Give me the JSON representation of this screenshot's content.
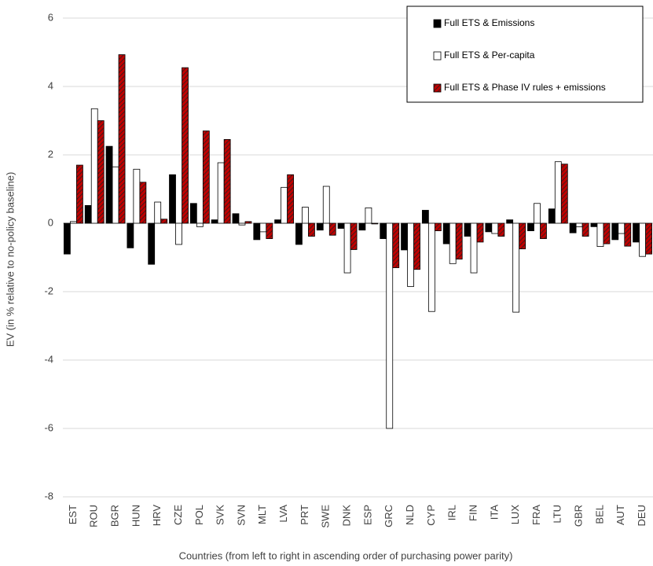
{
  "chart_data": {
    "type": "bar",
    "y_label": "EV (in % relative to no-policy baseline)",
    "x_label": "Countries (from left to right in ascending order of purchasing power parity)",
    "categories": [
      "EST",
      "ROU",
      "BGR",
      "HUN",
      "HRV",
      "CZE",
      "POL",
      "SVK",
      "SVN",
      "MLT",
      "LVA",
      "PRT",
      "SWE",
      "DNK",
      "ESP",
      "GRC",
      "NLD",
      "CYP",
      "IRL",
      "FIN",
      "ITA",
      "LUX",
      "FRA",
      "LTU",
      "GBR",
      "BEL",
      "AUT",
      "DEU"
    ],
    "series": [
      {
        "name": "Full ETS & Emissions",
        "color": "#000000",
        "values": [
          -0.9,
          0.52,
          2.25,
          -0.72,
          -1.2,
          1.42,
          0.58,
          0.1,
          0.28,
          -0.48,
          0.1,
          -0.62,
          -0.2,
          -0.15,
          -0.2,
          -0.45,
          -0.78,
          0.38,
          -0.6,
          -0.38,
          -0.25,
          0.1,
          -0.22,
          0.42,
          -0.28,
          -0.1,
          -0.48,
          -0.55
        ]
      },
      {
        "name": "Full ETS & Per-capita",
        "color": "#ffffff",
        "values": [
          0.05,
          3.35,
          1.65,
          1.58,
          0.62,
          -0.62,
          -0.1,
          1.77,
          -0.05,
          -0.25,
          1.05,
          0.47,
          1.08,
          -1.45,
          0.45,
          -6.0,
          -1.85,
          -2.58,
          -1.18,
          -1.45,
          -0.3,
          -2.6,
          0.58,
          1.8,
          -0.1,
          -0.68,
          -0.3,
          -0.97
        ]
      },
      {
        "name": "Full ETS & Phase IV rules + emissions",
        "color": "#c00000",
        "values": [
          1.7,
          3.0,
          4.93,
          1.2,
          0.12,
          4.55,
          2.7,
          2.45,
          0.05,
          -0.45,
          1.42,
          -0.38,
          -0.35,
          -0.77,
          -0.02,
          -1.3,
          -1.35,
          -0.22,
          -1.05,
          -0.55,
          -0.38,
          -0.75,
          -0.45,
          1.73,
          -0.38,
          -0.6,
          -0.67,
          -0.9
        ]
      }
    ],
    "ylim": [
      -8,
      6
    ],
    "yticks": [
      -8,
      -6,
      -4,
      -2,
      0,
      2,
      4,
      6
    ],
    "grid": true
  }
}
